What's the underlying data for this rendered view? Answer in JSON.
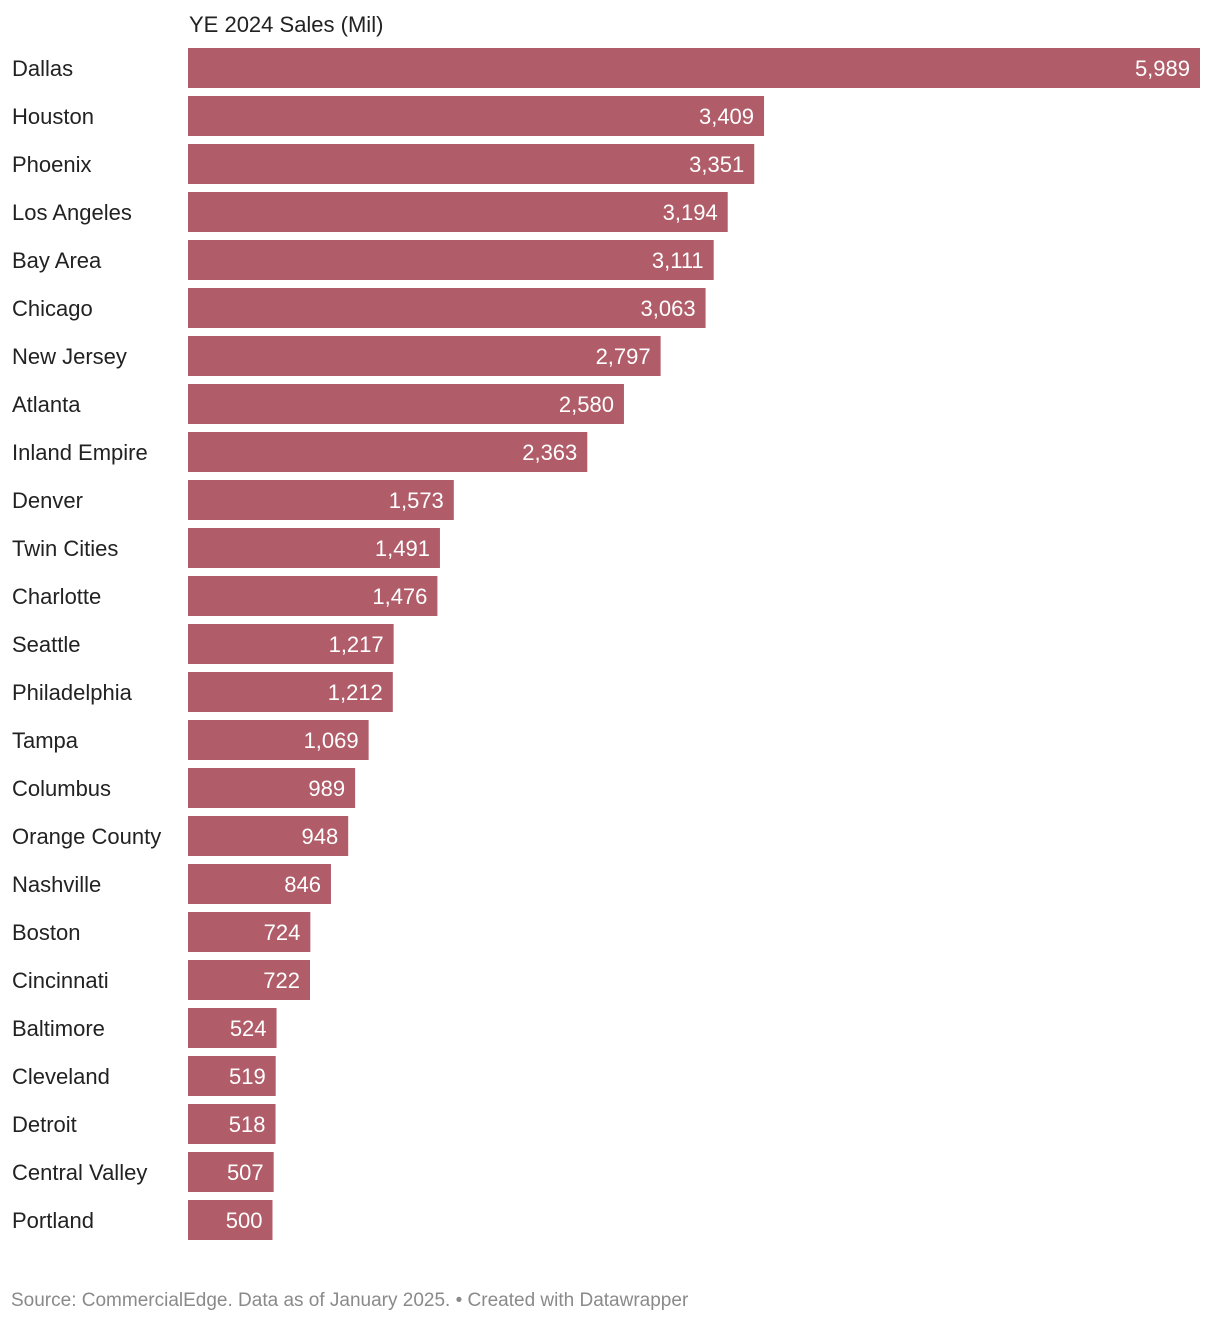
{
  "chart_data": {
    "type": "bar",
    "orientation": "horizontal",
    "column_header": "YE 2024 Sales (Mil)",
    "categories": [
      "Dallas",
      "Houston",
      "Phoenix",
      "Los Angeles",
      "Bay Area",
      "Chicago",
      "New Jersey",
      "Atlanta",
      "Inland Empire",
      "Denver",
      "Twin Cities",
      "Charlotte",
      "Seattle",
      "Philadelphia",
      "Tampa",
      "Columbus",
      "Orange County",
      "Nashville",
      "Boston",
      "Cincinnati",
      "Baltimore",
      "Cleveland",
      "Detroit",
      "Central Valley",
      "Portland"
    ],
    "values": [
      5989,
      3409,
      3351,
      3194,
      3111,
      3063,
      2797,
      2580,
      2363,
      1573,
      1491,
      1476,
      1217,
      1212,
      1069,
      989,
      948,
      846,
      724,
      722,
      524,
      519,
      518,
      507,
      500
    ],
    "value_labels": [
      "5,989",
      "3,409",
      "3,351",
      "3,194",
      "3,111",
      "3,063",
      "2,797",
      "2,580",
      "2,363",
      "1,573",
      "1,491",
      "1,476",
      "1,217",
      "1,212",
      "1,069",
      "989",
      "948",
      "846",
      "724",
      "722",
      "524",
      "519",
      "518",
      "507",
      "500"
    ],
    "xlim": [
      0,
      5989
    ],
    "bar_color": "#b05c69",
    "value_label_color": "#ffffff",
    "grid": false
  },
  "footer": {
    "source": "Source: CommercialEdge. Data as of January 2025. • Created with Datawrapper"
  }
}
